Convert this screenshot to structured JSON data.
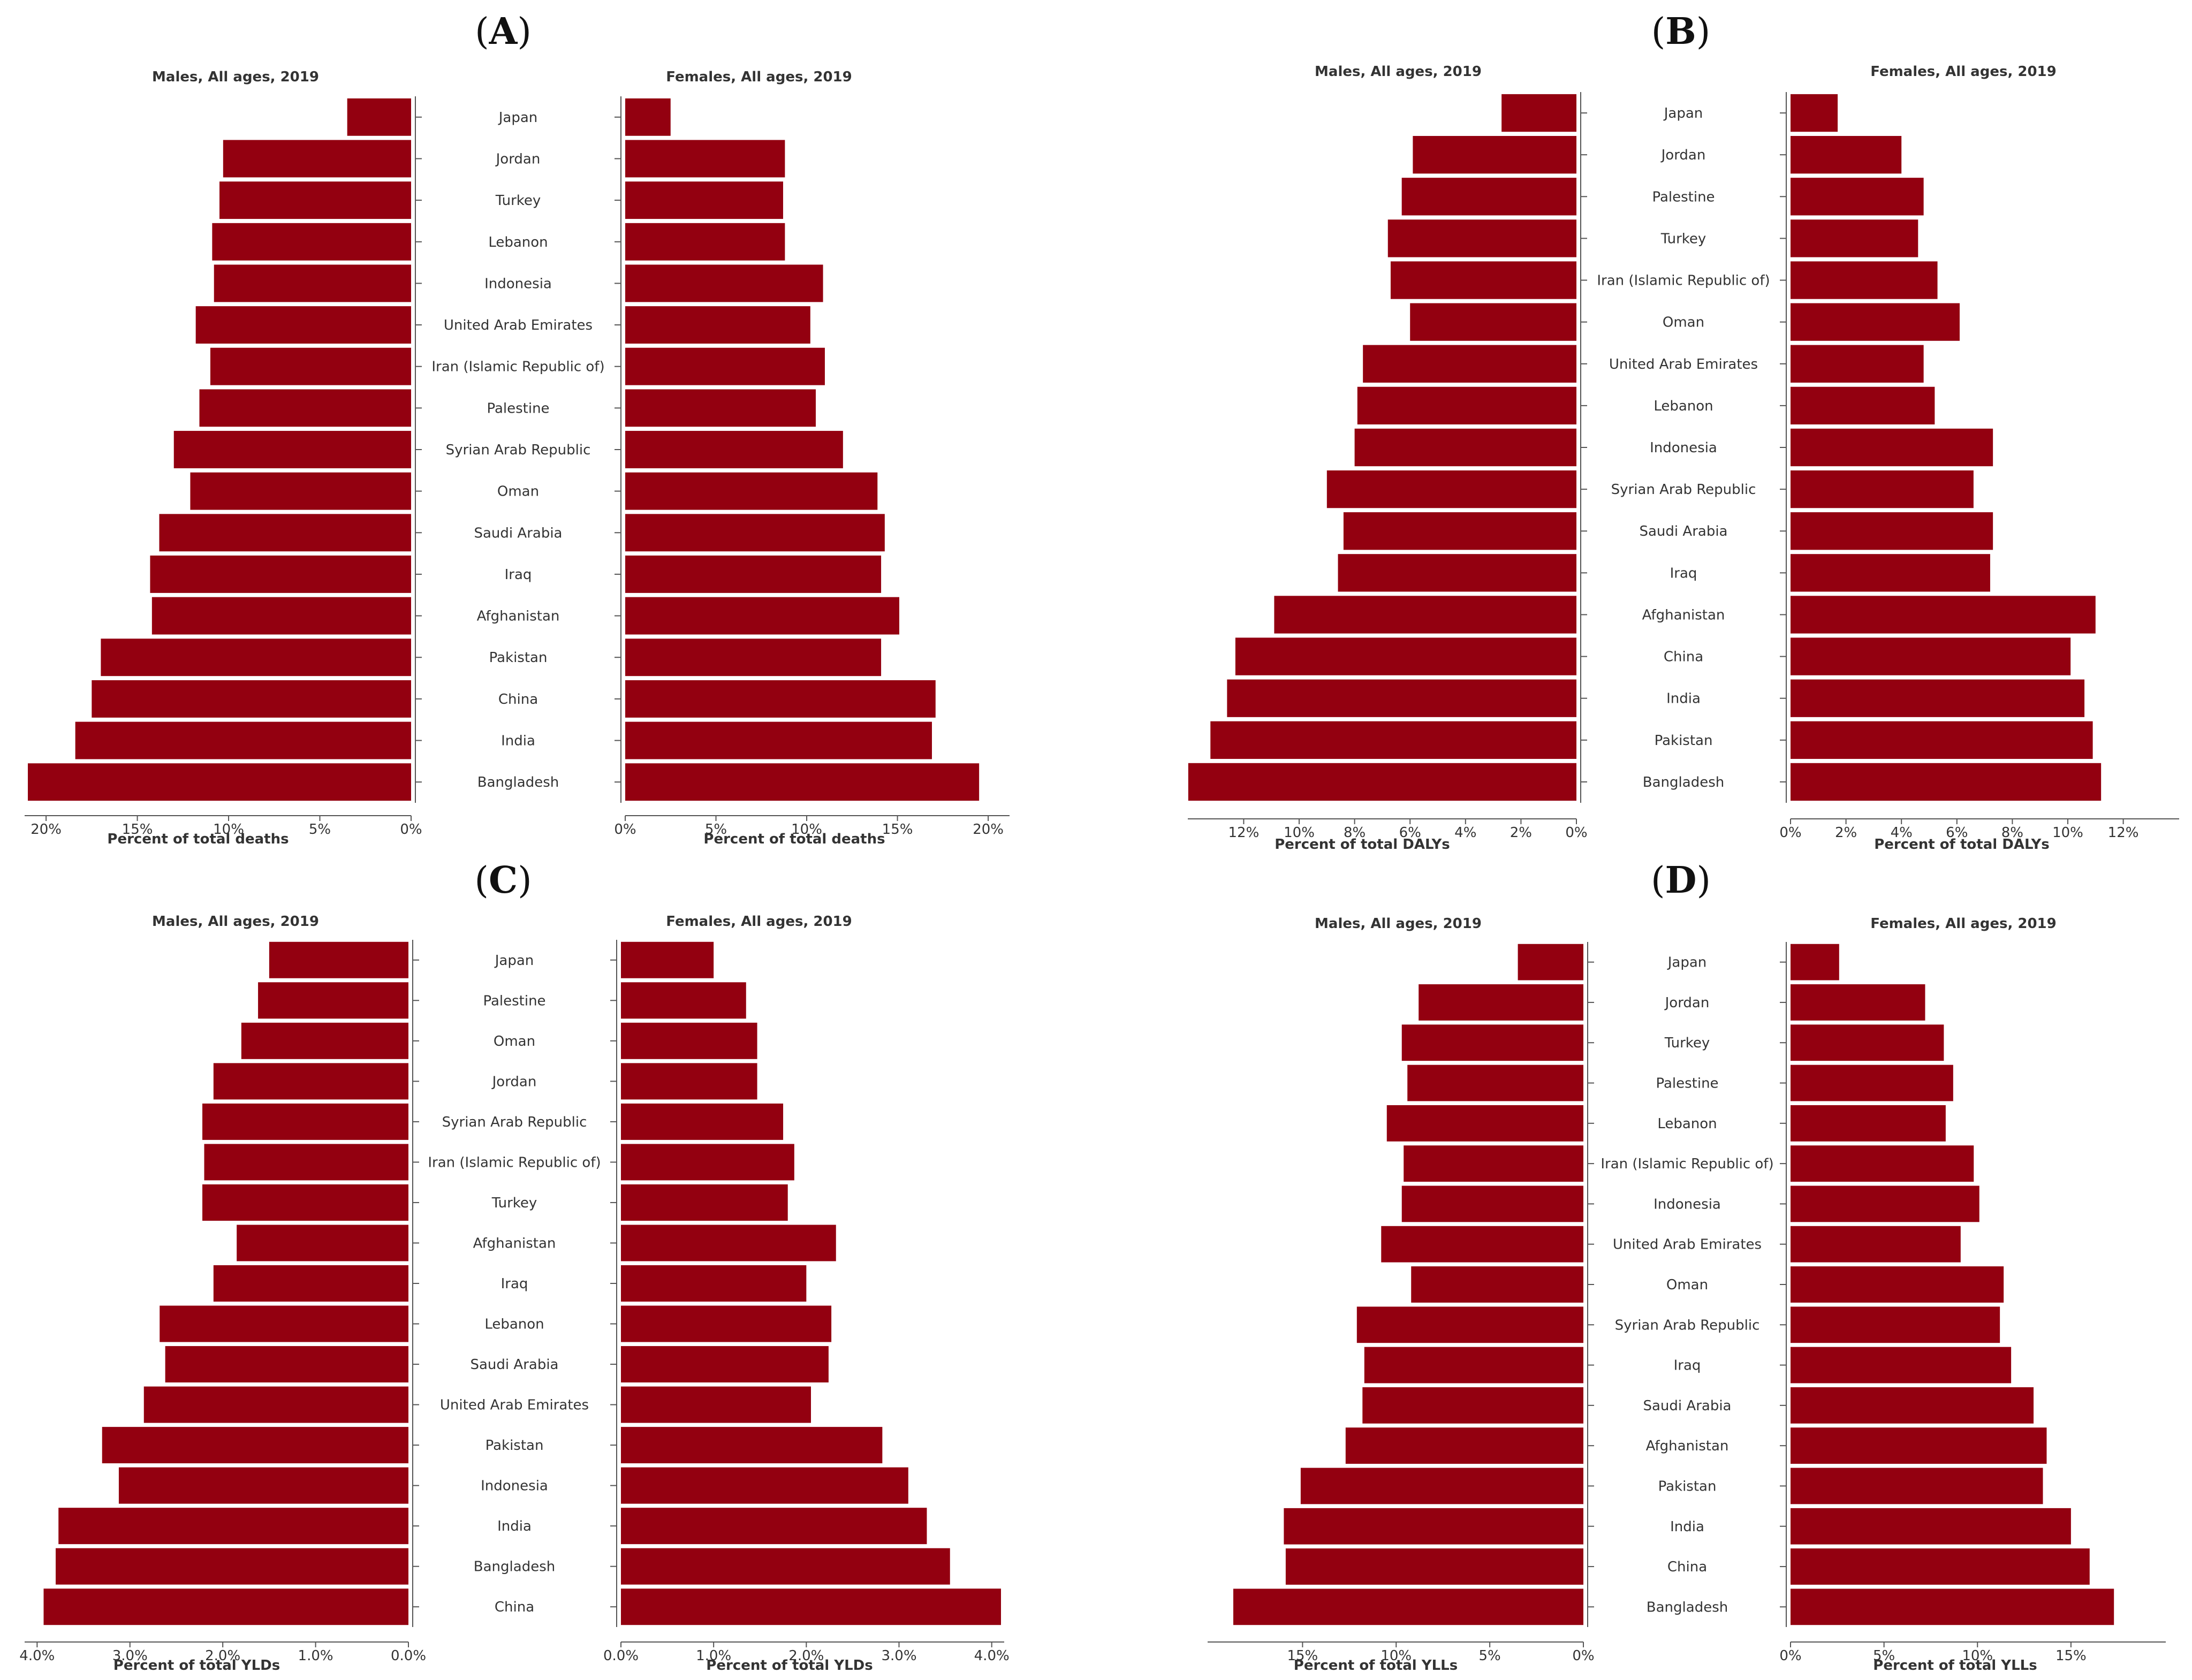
{
  "chart_data": [
    {
      "panel": "A",
      "type": "bar",
      "orientation": "horizontal-butterfly",
      "left": {
        "title": "Males, All ages, 2019",
        "xlabel": "Percent of total deaths",
        "xlim": [
          0,
          21
        ],
        "ticks": [
          0,
          5,
          10,
          15,
          20
        ],
        "tick_labels": [
          "0%",
          "5%",
          "10%",
          "15%",
          "20%"
        ]
      },
      "right": {
        "title": "Females, All ages, 2019",
        "xlabel": "Percent of total deaths",
        "xlim": [
          0,
          21
        ],
        "ticks": [
          0,
          5,
          10,
          15,
          20
        ],
        "tick_labels": [
          "0%",
          "5%",
          "10%",
          "15%",
          "20%"
        ]
      },
      "categories": [
        "Japan",
        "Jordan",
        "Turkey",
        "Lebanon",
        "Indonesia",
        "United Arab Emirates",
        "Iran (Islamic Republic of)",
        "Palestine",
        "Syrian Arab Republic",
        "Oman",
        "Saudi Arabia",
        "Iraq",
        "Afghanistan",
        "Pakistan",
        "China",
        "India",
        "Bangladesh"
      ],
      "series": [
        {
          "name": "Males",
          "values": [
            3.5,
            10.3,
            10.5,
            10.9,
            10.8,
            11.8,
            11.0,
            11.6,
            13.0,
            12.1,
            13.8,
            14.3,
            14.2,
            17.0,
            17.5,
            18.4,
            21.0
          ]
        },
        {
          "name": "Females",
          "values": [
            2.5,
            8.8,
            8.7,
            8.8,
            10.9,
            10.2,
            11.0,
            10.5,
            12.0,
            13.9,
            14.3,
            14.1,
            15.1,
            14.1,
            17.1,
            16.9,
            19.5
          ]
        }
      ]
    },
    {
      "panel": "B",
      "type": "bar",
      "orientation": "horizontal-butterfly",
      "left": {
        "title": "Males, All ages, 2019",
        "xlabel": "Percent of total DALYs",
        "xlim": [
          0,
          13.9
        ],
        "ticks": [
          0,
          2,
          4,
          6,
          8,
          10,
          12
        ],
        "tick_labels": [
          "0%",
          "2%",
          "4%",
          "6%",
          "8%",
          "10%",
          "12%"
        ]
      },
      "right": {
        "title": "Females, All ages, 2019",
        "xlabel": "Percent of total DALYs",
        "xlim": [
          0,
          13.9
        ],
        "ticks": [
          0,
          2,
          4,
          6,
          8,
          10,
          12
        ],
        "tick_labels": [
          "0%",
          "2%",
          "4%",
          "6%",
          "8%",
          "10%",
          "12%"
        ]
      },
      "categories": [
        "Japan",
        "Jordan",
        "Palestine",
        "Turkey",
        "Iran (Islamic Republic of)",
        "Oman",
        "United Arab Emirates",
        "Lebanon",
        "Indonesia",
        "Syrian Arab Republic",
        "Saudi Arabia",
        "Iraq",
        "Afghanistan",
        "China",
        "India",
        "Pakistan",
        "Bangladesh"
      ],
      "series": [
        {
          "name": "Males",
          "values": [
            2.7,
            5.9,
            6.3,
            6.8,
            6.7,
            6.0,
            7.7,
            7.9,
            8.0,
            9.0,
            8.4,
            8.6,
            10.9,
            12.3,
            12.6,
            13.2,
            14.0
          ]
        },
        {
          "name": "Females",
          "values": [
            1.7,
            4.0,
            4.8,
            4.6,
            5.3,
            6.1,
            4.8,
            5.2,
            7.3,
            6.6,
            7.3,
            7.2,
            11.0,
            10.1,
            10.6,
            10.9,
            11.2
          ]
        }
      ]
    },
    {
      "panel": "C",
      "type": "bar",
      "orientation": "horizontal-butterfly",
      "left": {
        "title": "Males, All ages, 2019",
        "xlabel": "Percent of total YLDs",
        "xlim": [
          0,
          4.1
        ],
        "ticks": [
          0,
          1,
          2,
          3,
          4
        ],
        "tick_labels": [
          "0.0%",
          "1.0%",
          "2.0%",
          "3.0%",
          "4.0%"
        ]
      },
      "right": {
        "title": "Females, All ages, 2019",
        "xlabel": "Percent of total YLDs",
        "xlim": [
          0,
          4.1
        ],
        "ticks": [
          0,
          1,
          2,
          3,
          4
        ],
        "tick_labels": [
          "0.0%",
          "1.0%",
          "2.0%",
          "3.0%",
          "4.0%"
        ]
      },
      "categories": [
        "Japan",
        "Palestine",
        "Oman",
        "Jordan",
        "Syrian Arab Republic",
        "Iran (Islamic Republic of)",
        "Turkey",
        "Afghanistan",
        "Iraq",
        "Lebanon",
        "Saudi Arabia",
        "United Arab Emirates",
        "Pakistan",
        "Indonesia",
        "India",
        "Bangladesh",
        "China"
      ],
      "series": [
        {
          "name": "Males",
          "values": [
            1.5,
            1.62,
            1.8,
            2.1,
            2.22,
            2.2,
            2.22,
            1.85,
            2.1,
            2.68,
            2.62,
            2.85,
            3.3,
            3.12,
            3.77,
            3.8,
            3.93
          ]
        },
        {
          "name": "Females",
          "values": [
            1.0,
            1.35,
            1.47,
            1.47,
            1.75,
            1.87,
            1.8,
            2.32,
            2.0,
            2.27,
            2.24,
            2.05,
            2.82,
            3.1,
            3.3,
            3.55,
            4.1
          ]
        }
      ]
    },
    {
      "panel": "D",
      "type": "bar",
      "orientation": "horizontal-butterfly",
      "left": {
        "title": "Males, All ages, 2019",
        "xlabel": "Percent of total YLLs",
        "xlim": [
          0,
          19.9
        ],
        "ticks": [
          0,
          5,
          10,
          15
        ],
        "tick_labels": [
          "0%",
          "5%",
          "10%",
          "15%"
        ]
      },
      "right": {
        "title": "Females, All ages, 2019",
        "xlabel": "Percent of total YLLs",
        "xlim": [
          0,
          19.9
        ],
        "ticks": [
          0,
          5,
          10,
          15
        ],
        "tick_labels": [
          "0%",
          "5%",
          "10%",
          "15%"
        ]
      },
      "categories": [
        "Japan",
        "Jordan",
        "Turkey",
        "Palestine",
        "Lebanon",
        "Iran (Islamic Republic of)",
        "Indonesia",
        "United Arab Emirates",
        "Oman",
        "Syrian Arab Republic",
        "Iraq",
        "Saudi Arabia",
        "Afghanistan",
        "Pakistan",
        "India",
        "China",
        "Bangladesh"
      ],
      "series": [
        {
          "name": "Males",
          "values": [
            3.5,
            8.8,
            9.7,
            9.4,
            10.5,
            9.6,
            9.7,
            10.8,
            9.2,
            12.1,
            11.7,
            11.8,
            12.7,
            15.1,
            16.0,
            15.9,
            18.7
          ]
        },
        {
          "name": "Females",
          "values": [
            2.6,
            7.2,
            8.2,
            8.7,
            8.3,
            9.8,
            10.1,
            9.1,
            11.4,
            11.2,
            11.8,
            13.0,
            13.7,
            13.5,
            15.0,
            16.0,
            17.3
          ]
        }
      ]
    }
  ]
}
